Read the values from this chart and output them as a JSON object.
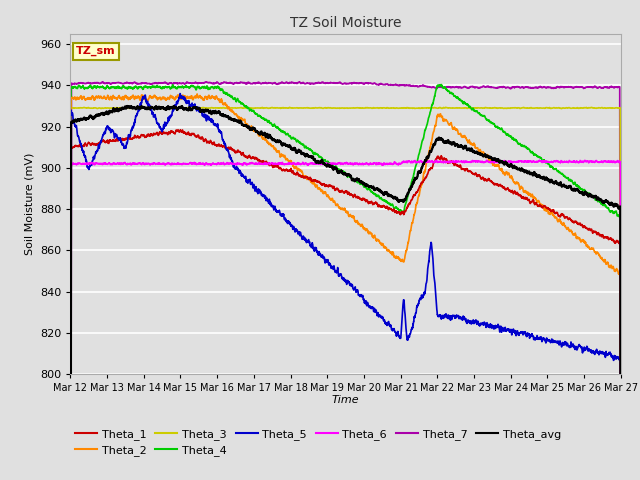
{
  "title": "TZ Soil Moisture",
  "xlabel": "Time",
  "ylabel": "Soil Moisture (mV)",
  "ylim": [
    800,
    965
  ],
  "xlim": [
    0,
    360
  ],
  "yticks": [
    800,
    820,
    840,
    860,
    880,
    900,
    920,
    940,
    960
  ],
  "bg_color": "#e0e0e0",
  "grid_color": "#ffffff",
  "title_color": "#333333",
  "series_colors": {
    "Theta_1": "#cc0000",
    "Theta_2": "#ff8800",
    "Theta_3": "#cccc00",
    "Theta_4": "#00cc00",
    "Theta_5": "#0000cc",
    "Theta_6": "#ff00ff",
    "Theta_7": "#aa00aa",
    "Theta_avg": "#000000"
  },
  "xtick_labels": [
    "Mar 12",
    "Mar 13",
    "Mar 14",
    "Mar 15",
    "Mar 16",
    "Mar 17",
    "Mar 18",
    "Mar 19",
    "Mar 20",
    "Mar 21",
    "Mar 22",
    "Mar 23",
    "Mar 24",
    "Mar 25",
    "Mar 26",
    "Mar 27"
  ],
  "xtick_positions": [
    0,
    24,
    48,
    72,
    96,
    120,
    144,
    168,
    192,
    216,
    240,
    264,
    288,
    312,
    336,
    360
  ],
  "legend_box_color": "#ffffcc",
  "legend_box_text": "TZ_sm",
  "legend_box_text_color": "#cc0000"
}
